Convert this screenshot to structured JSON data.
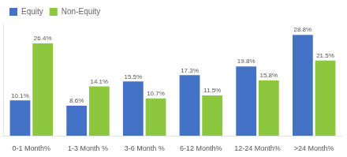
{
  "chart_data": {
    "type": "bar",
    "categories": [
      "0-1 Month%",
      "1-3 Month %",
      "3-6 Month %",
      "6-12 Month%",
      "12-24 Month%",
      ">24 Month%"
    ],
    "series": [
      {
        "name": "Equity",
        "color": "#4472C4",
        "values": [
          10.1,
          8.6,
          15.5,
          17.3,
          19.8,
          28.8
        ],
        "value_labels": [
          "10.1%",
          "8.6%",
          "15.5%",
          "17.3%",
          "19.8%",
          "28.8%"
        ]
      },
      {
        "name": "Non-Equity",
        "color": "#8DC63F",
        "values": [
          26.4,
          14.1,
          10.7,
          11.5,
          15.8,
          21.5
        ],
        "value_labels": [
          "26.4%",
          "14.1%",
          "10.7%",
          "11.5%",
          "15.8%",
          "21.5%"
        ]
      }
    ],
    "ylim": [
      0,
      32
    ],
    "grid": false,
    "legend": "upper left",
    "data_labels": true,
    "tick_labels": "x"
  }
}
